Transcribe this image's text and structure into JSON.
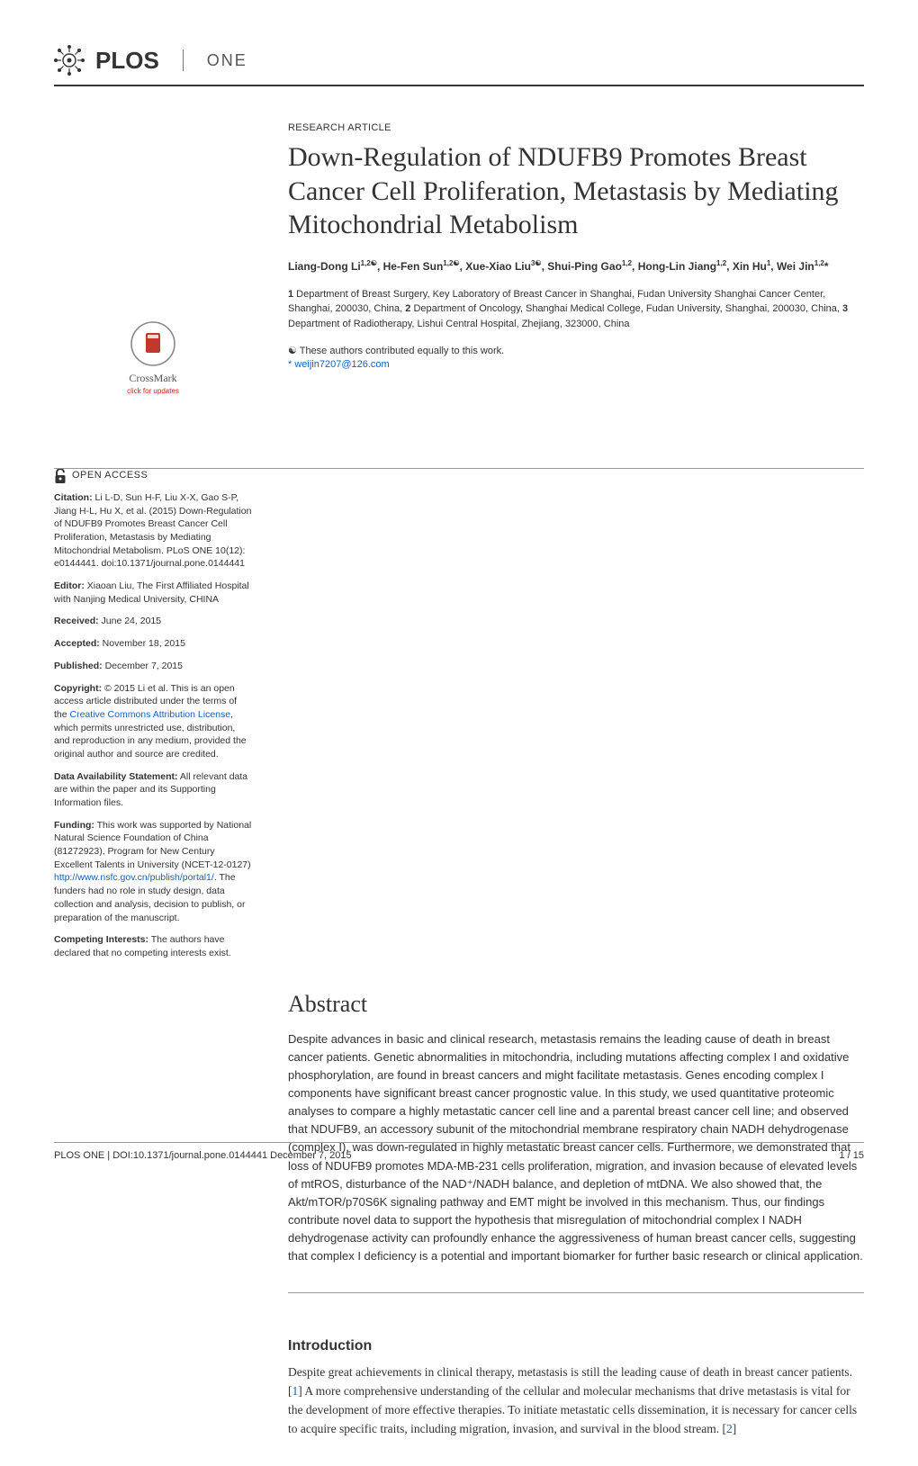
{
  "journal": {
    "name": "PLOS",
    "edition": "ONE"
  },
  "article_type": "RESEARCH ARTICLE",
  "title": "Down-Regulation of NDUFB9 Promotes Breast Cancer Cell Proliferation, Metastasis by Mediating Mitochondrial Metabolism",
  "authors_html": "Liang-Dong Li<sup>1,2☯</sup>, He-Fen Sun<sup>1,2☯</sup>, Xue-Xiao Liu<sup>3☯</sup>, Shui-Ping Gao<sup>1,2</sup>, Hong-Lin Jiang<sup>1,2</sup>, Xin Hu<sup>1</sup>, Wei Jin<sup>1,2</sup>*",
  "affiliations_html": "<b>1</b> Department of Breast Surgery, Key Laboratory of Breast Cancer in Shanghai, Fudan University Shanghai Cancer Center, Shanghai, 200030, China, <b>2</b> Department of Oncology, Shanghai Medical College, Fudan University, Shanghai, 200030, China, <b>3</b> Department of Radiotherapy, Lishui Central Hospital, Zhejiang, 323000, China",
  "equal_note": "☯ These authors contributed equally to this work.",
  "corr_email": "* weijin7207@126.com",
  "abstract_heading": "Abstract",
  "abstract_body": "Despite advances in basic and clinical research, metastasis remains the leading cause of death in breast cancer patients. Genetic abnormalities in mitochondria, including mutations affecting complex I and oxidative phosphorylation, are found in breast cancers and might facilitate metastasis. Genes encoding complex I components have significant breast cancer prognostic value. In this study, we used quantitative proteomic analyses to compare a highly metastatic cancer cell line and a parental breast cancer cell line; and observed that NDUFB9, an accessory subunit of the mitochondrial membrane respiratory chain NADH dehydrogenase (complex I), was down-regulated in highly metastatic breast cancer cells. Furthermore, we demonstrated that loss of NDUFB9 promotes MDA-MB-231 cells proliferation, migration, and invasion because of elevated levels of mtROS, disturbance of the NAD⁺/NADH balance, and depletion of mtDNA. We also showed that, the Akt/mTOR/p70S6K signaling pathway and EMT might be involved in this mechanism. Thus, our findings contribute novel data to support the hypothesis that misregulation of mitochondrial complex I NADH dehydrogenase activity can profoundly enhance the aggressiveness of human breast cancer cells, suggesting that complex I deficiency is a potential and important biomarker for further basic research or clinical application.",
  "intro_heading": "Introduction",
  "intro_body_html": "Despite great achievements in clinical therapy, metastasis is still the leading cause of death in breast cancer patients. [<span class=\"ref\">1</span>] A more comprehensive understanding of the cellular and molecular mechanisms that drive metastasis is vital for the development of more effective therapies. To initiate metastatic cells dissemination, it is necessary for cancer cells to acquire specific traits, including migration, invasion, and survival in the blood stream. [<span class=\"ref\">2</span>]",
  "crossmark": {
    "label": "CrossMark",
    "sub": "click for updates"
  },
  "sidebar": {
    "open_access": "OPEN ACCESS",
    "citation_label": "Citation:",
    "citation": " Li L-D, Sun H-F, Liu X-X, Gao S-P, Jiang H-L, Hu X, et al. (2015) Down-Regulation of NDUFB9 Promotes Breast Cancer Cell Proliferation, Metastasis by Mediating Mitochondrial Metabolism. PLoS ONE 10(12): e0144441. doi:10.1371/journal.pone.0144441",
    "editor_label": "Editor:",
    "editor": " Xiaoan Liu, The First Affiliated Hospital with Nanjing Medical University, CHINA",
    "received_label": "Received:",
    "received": " June 24, 2015",
    "accepted_label": "Accepted:",
    "accepted": " November 18, 2015",
    "published_label": "Published:",
    "published": " December 7, 2015",
    "copyright_label": "Copyright:",
    "copyright_before": " © 2015 Li et al. This is an open access article distributed under the terms of the ",
    "cc_link": "Creative Commons Attribution License",
    "copyright_after": ", which permits unrestricted use, distribution, and reproduction in any medium, provided the original author and source are credited.",
    "data_label": "Data Availability Statement:",
    "data": " All relevant data are within the paper and its Supporting Information files.",
    "funding_label": "Funding:",
    "funding_before": " This work was supported by National Natural Science Foundation of China (81272923), Program for New Century Excellent Talents in University (NCET-12-0127) ",
    "funding_link": "http://www.nsfc.gov.cn/publish/portal1/",
    "funding_after": ". The funders had no role in study design, data collection and analysis, decision to publish, or preparation of the manuscript.",
    "competing_label": "Competing Interests:",
    "competing": " The authors have declared that no competing interests exist."
  },
  "footer": {
    "left": "PLOS ONE | DOI:10.1371/journal.pone.0144441    December 7, 2015",
    "right": "1 / 15"
  },
  "colors": {
    "text": "#333333",
    "link": "#1a5fb4",
    "rule": "#999999",
    "header_rule": "#333333",
    "crossmark_red": "#c0392b"
  },
  "typography": {
    "title_fontsize": 30,
    "abstract_h_fontsize": 26,
    "body_fontsize": 13,
    "sidebar_fontsize": 10.5,
    "authors_fontsize": 12,
    "footer_fontsize": 11
  }
}
